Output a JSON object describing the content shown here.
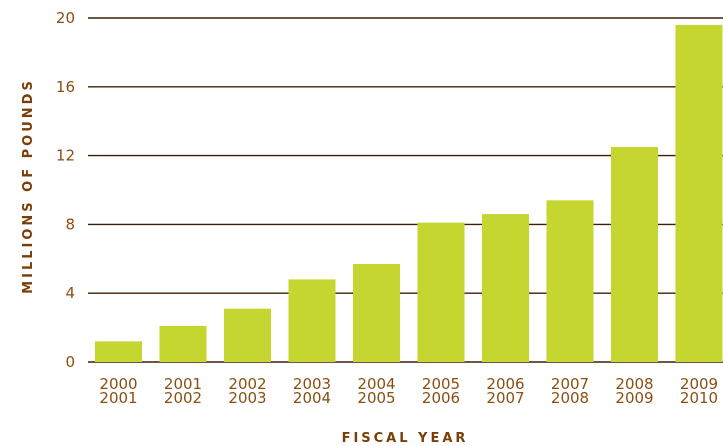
{
  "chart_data": {
    "type": "bar",
    "title": "",
    "xlabel": "FISCAL YEAR",
    "ylabel": "MILLIONS OF POUNDS",
    "categories": [
      [
        "2000",
        "2001"
      ],
      [
        "2001",
        "2002"
      ],
      [
        "2002",
        "2003"
      ],
      [
        "2003",
        "2004"
      ],
      [
        "2004",
        "2005"
      ],
      [
        "2005",
        "2006"
      ],
      [
        "2006",
        "2007"
      ],
      [
        "2007",
        "2008"
      ],
      [
        "2008",
        "2009"
      ],
      [
        "2009",
        "2010"
      ]
    ],
    "values": [
      1.2,
      2.1,
      3.1,
      4.8,
      5.7,
      8.1,
      8.6,
      9.4,
      12.5,
      19.6
    ],
    "ylim": [
      0,
      20
    ],
    "yticks": [
      "0",
      "4",
      "8",
      "12",
      "16",
      "20"
    ],
    "grid": true,
    "colors": {
      "bar": "#c4d62f",
      "grid": "#3d1f06",
      "label": "#8a4f12",
      "axis_title": "#7a3d06"
    }
  }
}
